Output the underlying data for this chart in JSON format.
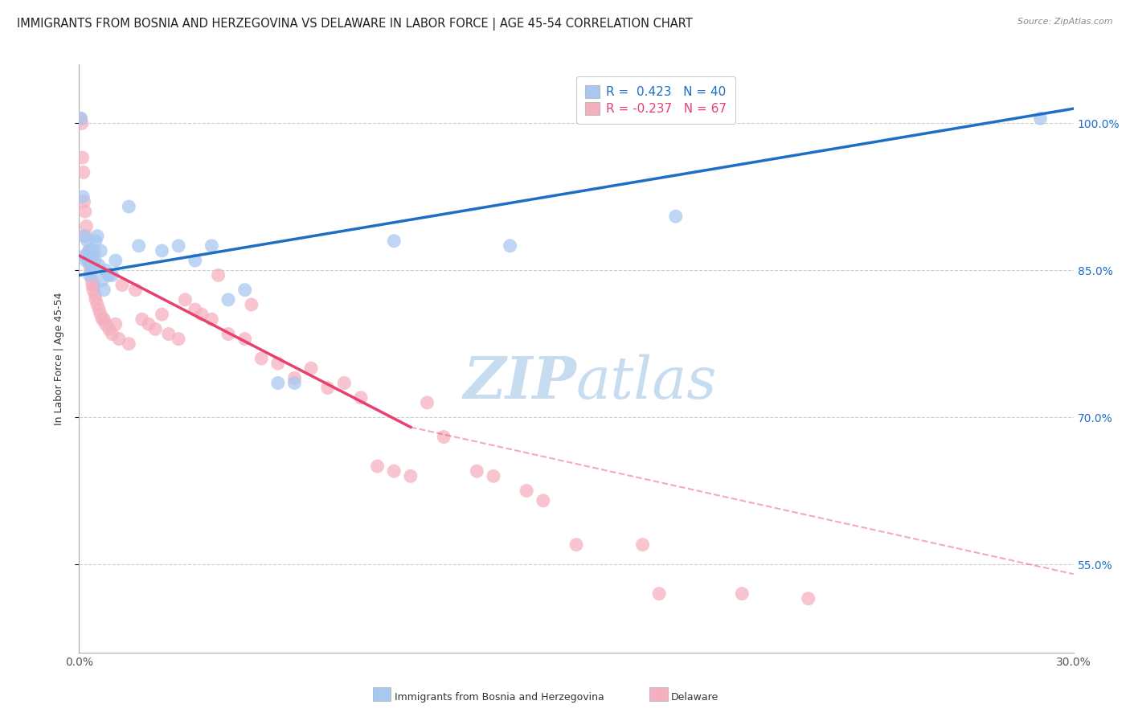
{
  "title": "IMMIGRANTS FROM BOSNIA AND HERZEGOVINA VS DELAWARE IN LABOR FORCE | AGE 45-54 CORRELATION CHART",
  "source": "Source: ZipAtlas.com",
  "ylabel": "In Labor Force | Age 45-54",
  "r_blue": 0.423,
  "n_blue": 40,
  "r_pink": -0.237,
  "n_pink": 67,
  "legend_label_blue": "Immigrants from Bosnia and Herzegovina",
  "legend_label_pink": "Delaware",
  "xlim": [
    0.0,
    30.0
  ],
  "ylim": [
    46.0,
    106.0
  ],
  "yticks": [
    55.0,
    70.0,
    85.0,
    100.0
  ],
  "blue_scatter": [
    [
      0.05,
      100.5
    ],
    [
      0.12,
      92.5
    ],
    [
      0.15,
      88.5
    ],
    [
      0.18,
      86.5
    ],
    [
      0.2,
      86.0
    ],
    [
      0.22,
      86.5
    ],
    [
      0.25,
      88.0
    ],
    [
      0.28,
      86.0
    ],
    [
      0.3,
      87.0
    ],
    [
      0.32,
      84.5
    ],
    [
      0.35,
      86.0
    ],
    [
      0.38,
      85.5
    ],
    [
      0.4,
      86.5
    ],
    [
      0.42,
      85.0
    ],
    [
      0.45,
      87.0
    ],
    [
      0.48,
      86.0
    ],
    [
      0.5,
      88.0
    ],
    [
      0.55,
      88.5
    ],
    [
      0.6,
      85.5
    ],
    [
      0.65,
      87.0
    ],
    [
      0.7,
      84.0
    ],
    [
      0.75,
      83.0
    ],
    [
      0.8,
      85.0
    ],
    [
      0.9,
      84.5
    ],
    [
      1.0,
      84.5
    ],
    [
      1.1,
      86.0
    ],
    [
      1.5,
      91.5
    ],
    [
      1.8,
      87.5
    ],
    [
      2.5,
      87.0
    ],
    [
      3.0,
      87.5
    ],
    [
      3.5,
      86.0
    ],
    [
      4.0,
      87.5
    ],
    [
      4.5,
      82.0
    ],
    [
      5.0,
      83.0
    ],
    [
      6.0,
      73.5
    ],
    [
      6.5,
      73.5
    ],
    [
      9.5,
      88.0
    ],
    [
      13.0,
      87.5
    ],
    [
      18.0,
      90.5
    ],
    [
      29.0,
      100.5
    ]
  ],
  "pink_scatter": [
    [
      0.05,
      100.5
    ],
    [
      0.08,
      100.0
    ],
    [
      0.1,
      96.5
    ],
    [
      0.13,
      95.0
    ],
    [
      0.15,
      92.0
    ],
    [
      0.18,
      91.0
    ],
    [
      0.2,
      88.5
    ],
    [
      0.22,
      89.5
    ],
    [
      0.25,
      86.5
    ],
    [
      0.28,
      86.0
    ],
    [
      0.3,
      87.0
    ],
    [
      0.32,
      85.5
    ],
    [
      0.35,
      85.0
    ],
    [
      0.38,
      84.0
    ],
    [
      0.4,
      83.5
    ],
    [
      0.42,
      83.0
    ],
    [
      0.45,
      83.5
    ],
    [
      0.48,
      82.5
    ],
    [
      0.5,
      82.0
    ],
    [
      0.55,
      81.5
    ],
    [
      0.6,
      81.0
    ],
    [
      0.65,
      80.5
    ],
    [
      0.7,
      80.0
    ],
    [
      0.75,
      80.0
    ],
    [
      0.8,
      79.5
    ],
    [
      0.9,
      79.0
    ],
    [
      1.0,
      78.5
    ],
    [
      1.1,
      79.5
    ],
    [
      1.2,
      78.0
    ],
    [
      1.3,
      83.5
    ],
    [
      1.5,
      77.5
    ],
    [
      1.7,
      83.0
    ],
    [
      1.9,
      80.0
    ],
    [
      2.1,
      79.5
    ],
    [
      2.3,
      79.0
    ],
    [
      2.5,
      80.5
    ],
    [
      2.7,
      78.5
    ],
    [
      3.0,
      78.0
    ],
    [
      3.2,
      82.0
    ],
    [
      3.5,
      81.0
    ],
    [
      3.7,
      80.5
    ],
    [
      4.0,
      80.0
    ],
    [
      4.2,
      84.5
    ],
    [
      4.5,
      78.5
    ],
    [
      5.0,
      78.0
    ],
    [
      5.2,
      81.5
    ],
    [
      5.5,
      76.0
    ],
    [
      6.0,
      75.5
    ],
    [
      6.5,
      74.0
    ],
    [
      7.0,
      75.0
    ],
    [
      7.5,
      73.0
    ],
    [
      8.0,
      73.5
    ],
    [
      8.5,
      72.0
    ],
    [
      9.0,
      65.0
    ],
    [
      9.5,
      64.5
    ],
    [
      10.0,
      64.0
    ],
    [
      10.5,
      71.5
    ],
    [
      11.0,
      68.0
    ],
    [
      12.0,
      64.5
    ],
    [
      12.5,
      64.0
    ],
    [
      13.5,
      62.5
    ],
    [
      14.0,
      61.5
    ],
    [
      15.0,
      57.0
    ],
    [
      17.0,
      57.0
    ],
    [
      17.5,
      52.0
    ],
    [
      20.0,
      52.0
    ],
    [
      22.0,
      51.5
    ]
  ],
  "blue_line": [
    [
      0.0,
      84.5
    ],
    [
      30.0,
      101.5
    ]
  ],
  "pink_line_solid": [
    [
      0.0,
      86.5
    ],
    [
      10.0,
      69.0
    ]
  ],
  "pink_line_dashed": [
    [
      10.0,
      69.0
    ],
    [
      30.0,
      54.0
    ]
  ],
  "blue_color": "#A8C8F0",
  "pink_color": "#F5B0C0",
  "blue_line_color": "#1E6EC8",
  "pink_line_color": "#E84070",
  "background_color": "#FFFFFF",
  "grid_color": "#CCCCCC",
  "title_fontsize": 10.5,
  "axis_fontsize": 10,
  "legend_fontsize": 11,
  "watermark_zip": "ZIP",
  "watermark_atlas": "atlas",
  "watermark_color": "#C8DCF0",
  "watermark_fontsize": 52
}
